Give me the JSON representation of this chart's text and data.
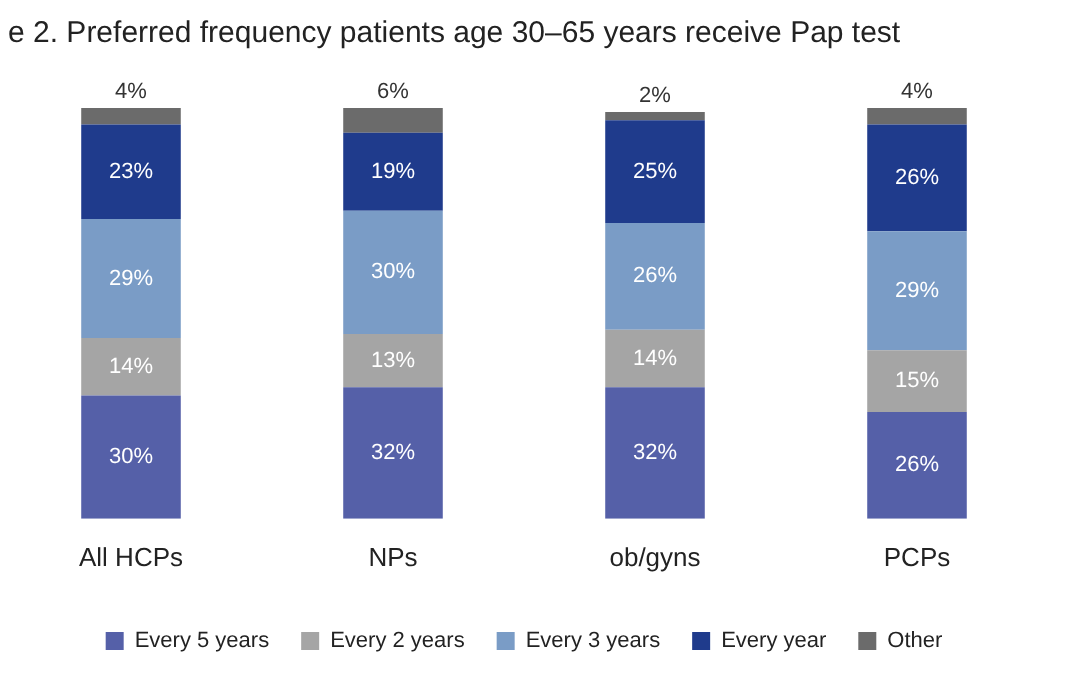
{
  "chart_data": {
    "type": "bar",
    "title": "e 2. Preferred frequency patients age 30–65 years receive Pap test",
    "categories": [
      "All HCPs",
      "NPs",
      "ob/gyns",
      "PCPs"
    ],
    "stacked": true,
    "legend": "bottom",
    "grid": false,
    "tick_labels": "x",
    "series": [
      {
        "name": "Every 5 years",
        "color": "#5560a8",
        "values": [
          30,
          32,
          32,
          26
        ],
        "value_labels": [
          "30%",
          "32%",
          "32%",
          "26%"
        ]
      },
      {
        "name": "Every 2 years",
        "color": "#a5a5a5",
        "values": [
          14,
          13,
          14,
          15
        ],
        "value_labels": [
          "14%",
          "13%",
          "14%",
          "15%"
        ]
      },
      {
        "name": "Every 3 years",
        "color": "#7a9cc6",
        "values": [
          29,
          30,
          26,
          29
        ],
        "value_labels": [
          "29%",
          "30%",
          "26%",
          "29%"
        ]
      },
      {
        "name": "Every year",
        "color": "#1f3b8c",
        "values": [
          23,
          19,
          25,
          26
        ],
        "value_labels": [
          "23%",
          "19%",
          "25%",
          "26%"
        ]
      },
      {
        "name": "Other",
        "color": "#6b6b6b",
        "values": [
          4,
          6,
          2,
          4
        ],
        "value_labels": [
          "4%",
          "6%",
          "2%",
          "4%"
        ]
      }
    ]
  }
}
